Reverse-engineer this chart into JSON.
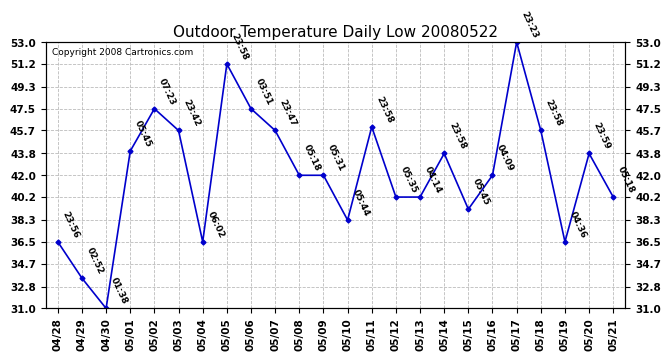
{
  "title": "Outdoor Temperature Daily Low 20080522",
  "copyright": "Copyright 2008 Cartronics.com",
  "dates": [
    "04/28",
    "04/29",
    "04/30",
    "05/01",
    "05/02",
    "05/03",
    "05/04",
    "05/05",
    "05/06",
    "05/07",
    "05/08",
    "05/09",
    "05/10",
    "05/11",
    "05/12",
    "05/13",
    "05/14",
    "05/15",
    "05/16",
    "05/17",
    "05/18",
    "05/19",
    "05/20",
    "05/21"
  ],
  "values": [
    36.5,
    33.5,
    31.0,
    44.0,
    47.5,
    45.7,
    36.5,
    51.2,
    47.5,
    45.7,
    42.0,
    42.0,
    38.3,
    46.0,
    40.2,
    40.2,
    43.8,
    39.2,
    42.0,
    53.0,
    45.7,
    36.5,
    43.8,
    40.2
  ],
  "labels": [
    "23:56",
    "02:52",
    "01:38",
    "05:45",
    "07:23",
    "23:42",
    "06:02",
    "23:58",
    "03:51",
    "23:47",
    "05:18",
    "05:31",
    "05:44",
    "23:58",
    "05:35",
    "04:14",
    "23:58",
    "05:45",
    "04:09",
    "23:23",
    "23:58",
    "04:36",
    "23:59",
    "05:18"
  ],
  "ylim": [
    31.0,
    53.0
  ],
  "yticks": [
    31.0,
    32.8,
    34.7,
    36.5,
    38.3,
    40.2,
    42.0,
    43.8,
    45.7,
    47.5,
    49.3,
    51.2,
    53.0
  ],
  "line_color": "#0000cc",
  "marker_color": "#0000cc",
  "background_color": "#ffffff",
  "grid_color": "#bbbbbb",
  "title_fontsize": 11,
  "label_fontsize": 6.5,
  "tick_fontsize": 7.5,
  "copyright_fontsize": 6.5
}
